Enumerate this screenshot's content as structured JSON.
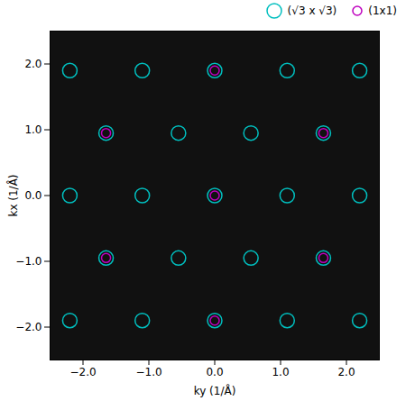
{
  "chart_data": {
    "type": "scatter",
    "xlabel": "ky (1/Å)",
    "ylabel": "kx (1/Å)",
    "xlim": [
      -2.5,
      2.5
    ],
    "ylim": [
      -2.5,
      2.5
    ],
    "xticks": [
      -2,
      -1,
      0,
      1,
      2
    ],
    "yticks": [
      -2,
      -1,
      0,
      1,
      2
    ],
    "legend": "top",
    "series": [
      {
        "name": "(√3 x √3)",
        "color": "#00bfbf",
        "marker": "circle",
        "x": [
          -2.2,
          -1.1,
          0,
          1.1,
          2.2,
          -1.65,
          -0.55,
          0.55,
          1.65,
          -2.2,
          -1.1,
          0,
          1.1,
          2.2,
          -1.65,
          -0.55,
          0.55,
          1.65,
          -2.2,
          -1.1,
          0,
          1.1,
          2.2
        ],
        "y": [
          1.9,
          1.9,
          1.9,
          1.9,
          1.9,
          0.95,
          0.95,
          0.95,
          0.95,
          0,
          0,
          0,
          0,
          0,
          -0.95,
          -0.95,
          -0.95,
          -0.95,
          -1.9,
          -1.9,
          -1.9,
          -1.9,
          -1.9
        ]
      },
      {
        "name": "(1x1)",
        "color": "#bf00bf",
        "marker": "circle",
        "x": [
          0,
          -1.65,
          1.65,
          0,
          -1.65,
          1.65,
          0
        ],
        "y": [
          1.9,
          0.95,
          0.95,
          0,
          -0.95,
          -0.95,
          -1.9
        ]
      }
    ]
  }
}
